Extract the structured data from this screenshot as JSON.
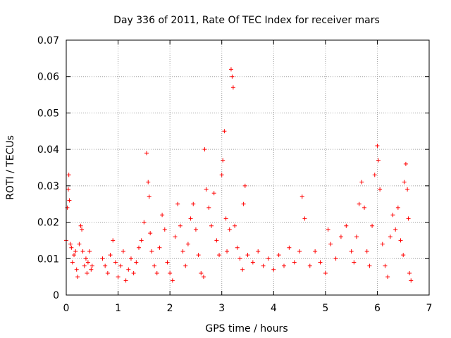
{
  "chart_data": {
    "type": "scatter",
    "title": "Day 336 of 2011, Rate Of TEC Index for receiver mars",
    "xlabel": "GPS time / hours",
    "ylabel": "ROTI / TECUs",
    "xlim": [
      0,
      7
    ],
    "ylim": [
      0,
      0.07
    ],
    "x_ticks": [
      0,
      1,
      2,
      3,
      4,
      5,
      6,
      7
    ],
    "x_tick_labels": [
      "0",
      "1",
      "2",
      "3",
      "4",
      "5",
      "6",
      "7"
    ],
    "y_ticks": [
      0,
      0.01,
      0.02,
      0.03,
      0.04,
      0.05,
      0.06,
      0.07
    ],
    "y_tick_labels": [
      "0",
      "0.01",
      "0.02",
      "0.03",
      "0.04",
      "0.05",
      "0.06",
      "0.07"
    ],
    "grid": true,
    "marker": "+",
    "color": "#ff0000",
    "series": [
      {
        "name": "ROTI",
        "x": [
          0.0,
          0.02,
          0.04,
          0.05,
          0.06,
          0.08,
          0.1,
          0.12,
          0.15,
          0.18,
          0.2,
          0.22,
          0.25,
          0.28,
          0.3,
          0.32,
          0.35,
          0.38,
          0.4,
          0.42,
          0.45,
          0.48,
          0.5,
          0.7,
          0.75,
          0.8,
          0.85,
          0.9,
          0.95,
          1.0,
          1.05,
          1.1,
          1.15,
          1.2,
          1.25,
          1.3,
          1.35,
          1.4,
          1.45,
          1.5,
          1.55,
          1.58,
          1.6,
          1.62,
          1.65,
          1.7,
          1.75,
          1.8,
          1.85,
          1.9,
          1.95,
          2.0,
          2.05,
          2.1,
          2.15,
          2.2,
          2.25,
          2.3,
          2.35,
          2.4,
          2.45,
          2.5,
          2.55,
          2.6,
          2.65,
          2.67,
          2.7,
          2.75,
          2.8,
          2.85,
          2.9,
          2.95,
          3.0,
          3.02,
          3.05,
          3.08,
          3.1,
          3.15,
          3.18,
          3.2,
          3.22,
          3.25,
          3.3,
          3.35,
          3.4,
          3.42,
          3.45,
          3.5,
          3.6,
          3.7,
          3.8,
          3.9,
          4.0,
          4.1,
          4.2,
          4.3,
          4.4,
          4.5,
          4.55,
          4.6,
          4.7,
          4.8,
          4.9,
          5.0,
          5.05,
          5.1,
          5.2,
          5.3,
          5.4,
          5.5,
          5.55,
          5.6,
          5.65,
          5.7,
          5.75,
          5.8,
          5.85,
          5.9,
          5.95,
          6.0,
          6.02,
          6.05,
          6.1,
          6.15,
          6.2,
          6.25,
          6.3,
          6.35,
          6.4,
          6.45,
          6.5,
          6.52,
          6.55,
          6.58,
          6.6,
          6.62,
          6.65
        ],
        "y": [
          0.015,
          0.024,
          0.029,
          0.033,
          0.026,
          0.014,
          0.013,
          0.009,
          0.011,
          0.012,
          0.007,
          0.005,
          0.014,
          0.019,
          0.018,
          0.012,
          0.008,
          0.01,
          0.006,
          0.009,
          0.012,
          0.007,
          0.008,
          0.01,
          0.008,
          0.006,
          0.011,
          0.015,
          0.009,
          0.005,
          0.008,
          0.012,
          0.004,
          0.007,
          0.01,
          0.006,
          0.009,
          0.013,
          0.015,
          0.02,
          0.039,
          0.031,
          0.027,
          0.017,
          0.012,
          0.008,
          0.006,
          0.013,
          0.022,
          0.018,
          0.009,
          0.006,
          0.004,
          0.016,
          0.025,
          0.019,
          0.012,
          0.008,
          0.014,
          0.021,
          0.025,
          0.018,
          0.011,
          0.006,
          0.005,
          0.04,
          0.029,
          0.024,
          0.019,
          0.028,
          0.015,
          0.011,
          0.033,
          0.037,
          0.045,
          0.021,
          0.012,
          0.018,
          0.062,
          0.06,
          0.057,
          0.019,
          0.013,
          0.01,
          0.007,
          0.025,
          0.03,
          0.011,
          0.009,
          0.012,
          0.008,
          0.01,
          0.007,
          0.011,
          0.008,
          0.013,
          0.009,
          0.012,
          0.027,
          0.021,
          0.008,
          0.012,
          0.009,
          0.006,
          0.018,
          0.014,
          0.01,
          0.016,
          0.019,
          0.012,
          0.009,
          0.016,
          0.025,
          0.031,
          0.024,
          0.012,
          0.008,
          0.019,
          0.033,
          0.041,
          0.037,
          0.029,
          0.014,
          0.008,
          0.005,
          0.016,
          0.022,
          0.018,
          0.024,
          0.015,
          0.011,
          0.031,
          0.036,
          0.029,
          0.021,
          0.006,
          0.004
        ]
      }
    ]
  }
}
